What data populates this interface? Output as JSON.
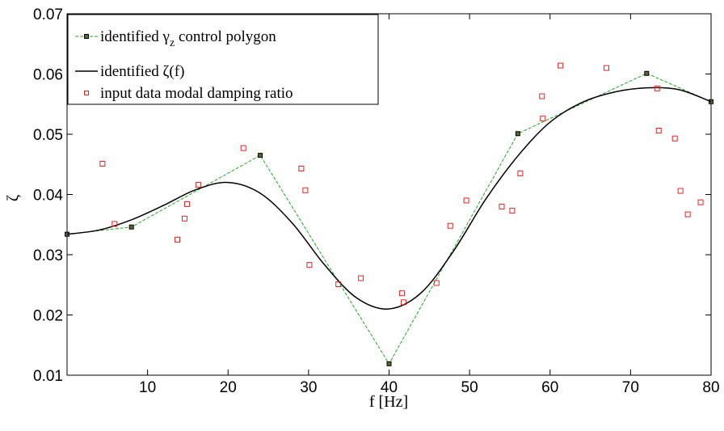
{
  "chart_data": {
    "type": "line",
    "title": "",
    "xlabel": "f [Hz]",
    "ylabel": "ζ",
    "xlim": [
      0,
      80
    ],
    "ylim": [
      0.01,
      0.07
    ],
    "xticks": [
      10,
      20,
      30,
      40,
      50,
      60,
      70,
      80
    ],
    "yticks": [
      0.01,
      0.02,
      0.03,
      0.04,
      0.05,
      0.06,
      0.07
    ],
    "ytick_labels": [
      "0.01",
      "0.02",
      "0.03",
      "0.04",
      "0.05",
      "0.06",
      "0.07"
    ],
    "grid": false,
    "legend_position": "top-left",
    "series": [
      {
        "name": "identified γz control polygon",
        "legend_main": "identified γ",
        "legend_sub": "z",
        "legend_rest": " control polygon",
        "style": "dashed-line-square-markers",
        "color": "#22aa22",
        "marker_fill": "#556b2f",
        "x": [
          0,
          8,
          24,
          40,
          56,
          72,
          80
        ],
        "y": [
          0.0334,
          0.0346,
          0.0465,
          0.0119,
          0.0501,
          0.0601,
          0.0554
        ]
      },
      {
        "name": "identified ζ(f)",
        "style": "solid-line",
        "color": "#000000",
        "x": [
          0,
          4,
          8,
          12,
          16,
          20,
          24,
          28,
          32,
          36,
          40,
          44,
          48,
          52,
          56,
          60,
          64,
          68,
          72,
          76,
          80
        ],
        "y": [
          0.0334,
          0.0341,
          0.0358,
          0.0382,
          0.0408,
          0.042,
          0.0402,
          0.0352,
          0.0283,
          0.0228,
          0.021,
          0.0237,
          0.0306,
          0.0392,
          0.0464,
          0.052,
          0.0553,
          0.057,
          0.0577,
          0.0574,
          0.0554
        ]
      },
      {
        "name": "input data modal damping ratio",
        "style": "open-square-markers",
        "color": "#ee2222",
        "x": [
          4.4,
          5.9,
          13.7,
          14.6,
          14.9,
          16.3,
          21.9,
          29.1,
          29.6,
          30.1,
          33.7,
          36.5,
          41.6,
          41.8,
          45.9,
          47.6,
          49.6,
          54.0,
          55.3,
          56.3,
          59.0,
          59.1,
          61.3,
          67.0,
          73.3,
          73.5,
          75.5,
          76.2,
          77.1,
          78.7
        ],
        "y": [
          0.0451,
          0.0351,
          0.0325,
          0.036,
          0.0384,
          0.0416,
          0.0477,
          0.0443,
          0.0407,
          0.0283,
          0.0251,
          0.0261,
          0.0236,
          0.0221,
          0.0253,
          0.0348,
          0.039,
          0.038,
          0.0373,
          0.0435,
          0.0563,
          0.0526,
          0.0614,
          0.061,
          0.0576,
          0.0506,
          0.0493,
          0.0406,
          0.0367,
          0.0387
        ]
      }
    ]
  }
}
